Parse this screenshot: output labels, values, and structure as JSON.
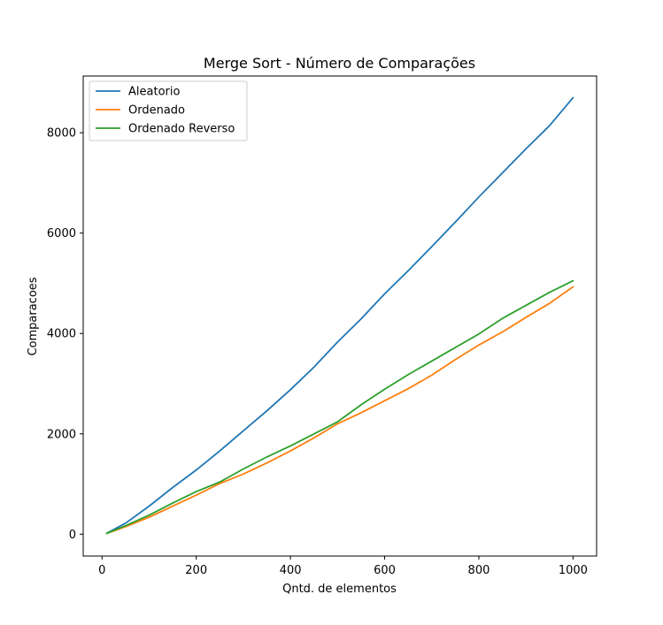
{
  "chart_data": {
    "type": "line",
    "title": "Merge Sort - Número de Comparações",
    "xlabel": "Qntd. de elementos",
    "ylabel": "Comparacoes",
    "xlim": [
      -40,
      1050
    ],
    "ylim": [
      -435,
      9130
    ],
    "xticks": [
      0,
      200,
      400,
      600,
      800,
      1000
    ],
    "yticks": [
      0,
      2000,
      4000,
      6000,
      8000
    ],
    "grid": false,
    "legend_position": "top-left",
    "series": [
      {
        "name": "Aleatorio",
        "color": "#1f77b4",
        "x": [
          10,
          50,
          100,
          150,
          200,
          250,
          300,
          350,
          400,
          450,
          500,
          550,
          600,
          650,
          700,
          750,
          800,
          850,
          900,
          950,
          1000
        ],
        "y": [
          20,
          220,
          560,
          930,
          1280,
          1660,
          2060,
          2460,
          2880,
          3330,
          3830,
          4290,
          4790,
          5250,
          5730,
          6220,
          6720,
          7200,
          7680,
          8140,
          8700
        ]
      },
      {
        "name": "Ordenado",
        "color": "#ff7f0e",
        "x": [
          10,
          50,
          100,
          150,
          200,
          250,
          300,
          350,
          400,
          450,
          500,
          550,
          600,
          650,
          700,
          750,
          800,
          850,
          900,
          950,
          1000
        ],
        "y": [
          15,
          150,
          340,
          560,
          780,
          1010,
          1200,
          1420,
          1660,
          1920,
          2200,
          2420,
          2660,
          2900,
          3170,
          3480,
          3770,
          4030,
          4320,
          4600,
          4930
        ]
      },
      {
        "name": "Ordenado Reverso",
        "color": "#2ca02c",
        "x": [
          10,
          50,
          100,
          150,
          200,
          250,
          300,
          350,
          400,
          450,
          500,
          550,
          600,
          650,
          700,
          750,
          800,
          850,
          900,
          950,
          1000
        ],
        "y": [
          18,
          170,
          380,
          620,
          850,
          1040,
          1300,
          1540,
          1760,
          2000,
          2240,
          2580,
          2890,
          3180,
          3450,
          3720,
          3990,
          4300,
          4560,
          4820,
          5050
        ]
      }
    ]
  }
}
